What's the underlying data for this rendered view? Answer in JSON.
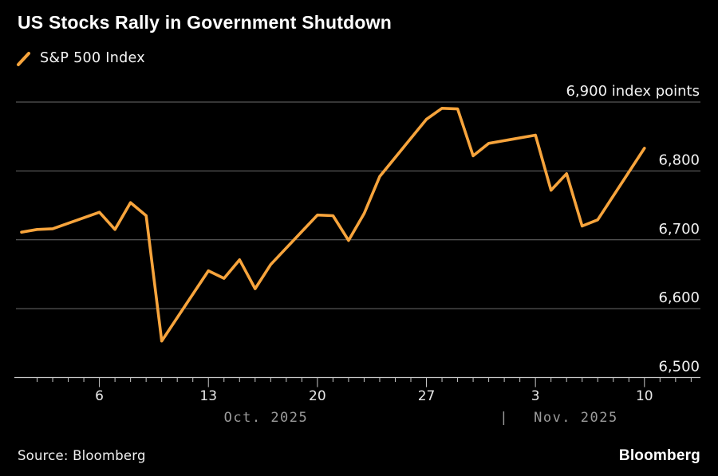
{
  "header": {
    "title": "US Stocks Rally in Government Shutdown"
  },
  "legend": {
    "label": "S&P 500 Index"
  },
  "footer": {
    "source": "Source: Bloomberg",
    "brand": "Bloomberg"
  },
  "colors": {
    "background": "#000000",
    "series": "#F7A43C",
    "gridline": "#6c6c6c",
    "axis": "#c9c9c9",
    "day_label": "#e8e8e8",
    "month_label": "#9b9b9b",
    "value_label": "#f2f2f2"
  },
  "chart_data": {
    "type": "line",
    "title": "US Stocks Rally in Government Shutdown",
    "unit_label": "index points",
    "ylim": [
      6500,
      6900
    ],
    "grid": "horizontal",
    "legend_position": "top-left",
    "y_ticks": [
      {
        "value": 6900,
        "label": "6,900 index points"
      },
      {
        "value": 6800,
        "label": "6,800"
      },
      {
        "value": 6700,
        "label": "6,700"
      },
      {
        "value": 6600,
        "label": "6,600"
      },
      {
        "value": 6500,
        "label": "6,500"
      }
    ],
    "x_axis": {
      "minor_ticks": {
        "start_day": 2,
        "end_day": 44,
        "step": 1
      },
      "major_ticks": [
        {
          "day": 6,
          "label": "6"
        },
        {
          "day": 13,
          "label": "13"
        },
        {
          "day": 20,
          "label": "20"
        },
        {
          "day": 27,
          "label": "27"
        },
        {
          "day": 34,
          "label": "3"
        },
        {
          "day": 41,
          "label": "10"
        }
      ],
      "month_labels": [
        {
          "label": "Oct. 2025",
          "center_day": 16.7
        },
        {
          "label": "|",
          "center_day": 32.0
        },
        {
          "label": "Nov. 2025",
          "center_day": 36.6
        }
      ]
    },
    "series": [
      {
        "name": "S&P 500 Index",
        "color": "#F7A43C",
        "points": [
          {
            "date": "Oct 1",
            "day": 1,
            "value": 6711
          },
          {
            "date": "Oct 2",
            "day": 2,
            "value": 6715
          },
          {
            "date": "Oct 3",
            "day": 3,
            "value": 6716
          },
          {
            "date": "Oct 6",
            "day": 6,
            "value": 6740
          },
          {
            "date": "Oct 7",
            "day": 7,
            "value": 6715
          },
          {
            "date": "Oct 8",
            "day": 8,
            "value": 6754
          },
          {
            "date": "Oct 9",
            "day": 9,
            "value": 6735
          },
          {
            "date": "Oct 10",
            "day": 10,
            "value": 6553
          },
          {
            "date": "Oct 13",
            "day": 13,
            "value": 6655
          },
          {
            "date": "Oct 14",
            "day": 14,
            "value": 6644
          },
          {
            "date": "Oct 15",
            "day": 15,
            "value": 6671
          },
          {
            "date": "Oct 16",
            "day": 16,
            "value": 6629
          },
          {
            "date": "Oct 17",
            "day": 17,
            "value": 6664
          },
          {
            "date": "Oct 20",
            "day": 20,
            "value": 6736
          },
          {
            "date": "Oct 21",
            "day": 21,
            "value": 6735
          },
          {
            "date": "Oct 22",
            "day": 22,
            "value": 6699
          },
          {
            "date": "Oct 23",
            "day": 23,
            "value": 6738
          },
          {
            "date": "Oct 24",
            "day": 24,
            "value": 6792
          },
          {
            "date": "Oct 27",
            "day": 27,
            "value": 6875
          },
          {
            "date": "Oct 28",
            "day": 28,
            "value": 6891
          },
          {
            "date": "Oct 29",
            "day": 29,
            "value": 6890
          },
          {
            "date": "Oct 30",
            "day": 30,
            "value": 6822
          },
          {
            "date": "Oct 31",
            "day": 31,
            "value": 6840
          },
          {
            "date": "Nov 3",
            "day": 34,
            "value": 6852
          },
          {
            "date": "Nov 4",
            "day": 35,
            "value": 6772
          },
          {
            "date": "Nov 5",
            "day": 36,
            "value": 6796
          },
          {
            "date": "Nov 6",
            "day": 37,
            "value": 6720
          },
          {
            "date": "Nov 7",
            "day": 38,
            "value": 6729
          },
          {
            "date": "Nov 10",
            "day": 41,
            "value": 6833
          }
        ]
      }
    ]
  }
}
